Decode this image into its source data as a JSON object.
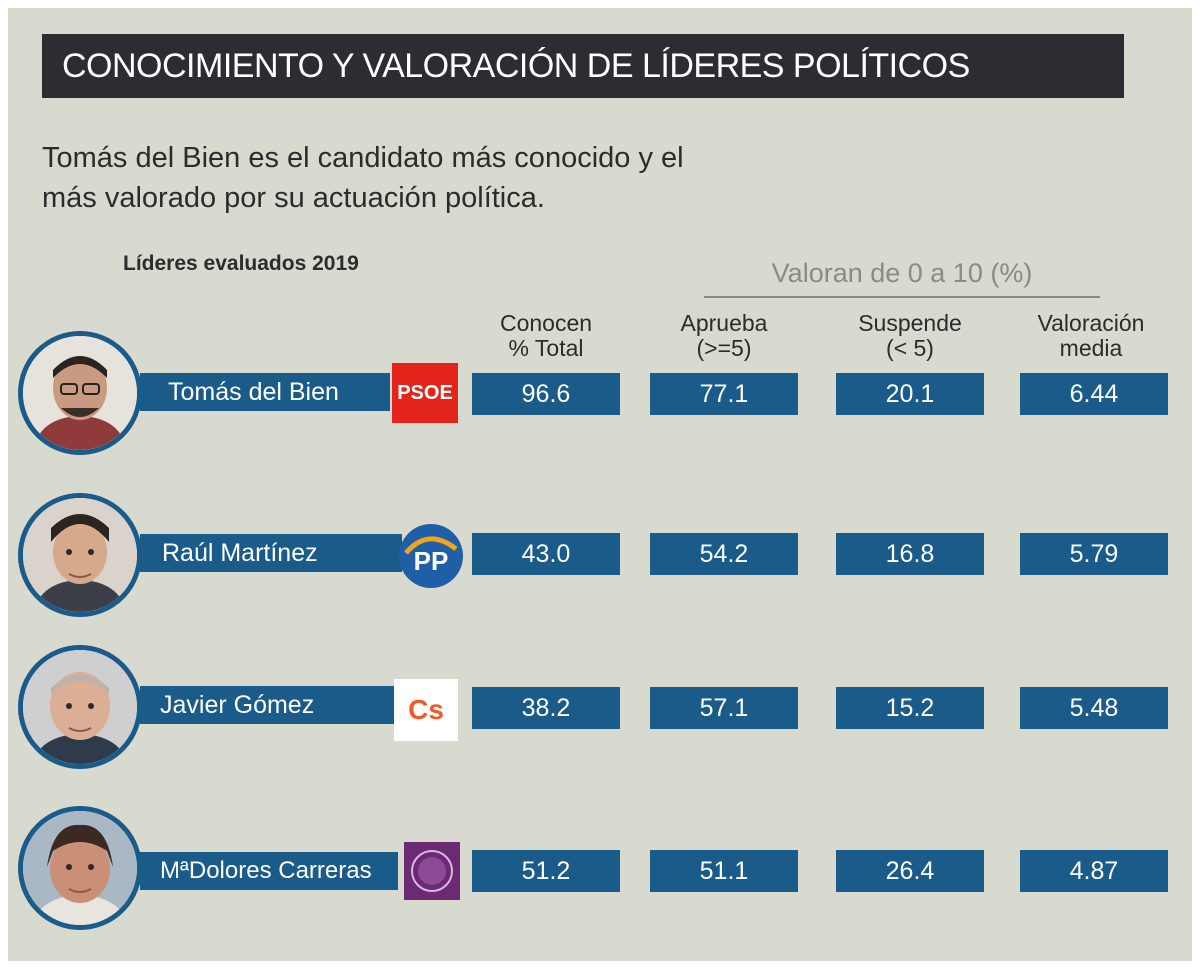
{
  "header": {
    "title": "CONOCIMIENTO Y VALORACIÓN DE LÍDERES POLÍTICOS",
    "subtitle_line1": "Tomás del Bien es el candidato más conocido y el",
    "subtitle_line2": "más valorado por su actuación política."
  },
  "section_label": "Líderes evaluados 2019",
  "group_label": "Valoran de 0 a 10 (%)",
  "columns": [
    {
      "line1": "Conocen",
      "line2": "% Total"
    },
    {
      "line1": "Aprueba",
      "line2": "(>=5)"
    },
    {
      "line1": "Suspende",
      "line2": "(< 5)"
    },
    {
      "line1": "Valoración",
      "line2": "media"
    }
  ],
  "rows": [
    {
      "name": "Tomás del Bien",
      "party": "PSOE",
      "party_color": "#e3241b",
      "values": [
        "96.6",
        "77.1",
        "20.1",
        "6.44"
      ]
    },
    {
      "name": "Raúl Martínez",
      "party": "PP",
      "party_color": "#1f5fa8",
      "values": [
        "43.0",
        "54.2",
        "16.8",
        "5.79"
      ]
    },
    {
      "name": "Javier Gómez",
      "party": "Cs",
      "party_color": "#f05a23",
      "values": [
        "38.2",
        "57.1",
        "15.2",
        "5.48"
      ]
    },
    {
      "name": "MªDolores Carreras",
      "party": "Podemos",
      "party_color": "#6c2a74",
      "values": [
        "51.2",
        "51.1",
        "26.4",
        "4.87"
      ]
    }
  ],
  "colors": {
    "background": "#d8d9cf",
    "title_bar": "#2b2d33",
    "accent_blue": "#1a5b8a"
  },
  "chart_data": {
    "type": "table",
    "title": "CONOCIMIENTO Y VALORACIÓN DE LÍDERES POLÍTICOS",
    "columns": [
      "Conocen % Total",
      "Aprueba (>=5)",
      "Suspende (< 5)",
      "Valoración media"
    ],
    "rows": [
      {
        "leader": "Tomás del Bien",
        "party": "PSOE",
        "values": [
          96.6,
          77.1,
          20.1,
          6.44
        ]
      },
      {
        "leader": "Raúl Martínez",
        "party": "PP",
        "values": [
          43.0,
          54.2,
          16.8,
          5.79
        ]
      },
      {
        "leader": "Javier Gómez",
        "party": "Cs",
        "values": [
          38.2,
          57.1,
          15.2,
          5.48
        ]
      },
      {
        "leader": "MªDolores Carreras",
        "party": "Podemos",
        "values": [
          51.2,
          51.1,
          26.4,
          4.87
        ]
      }
    ]
  }
}
